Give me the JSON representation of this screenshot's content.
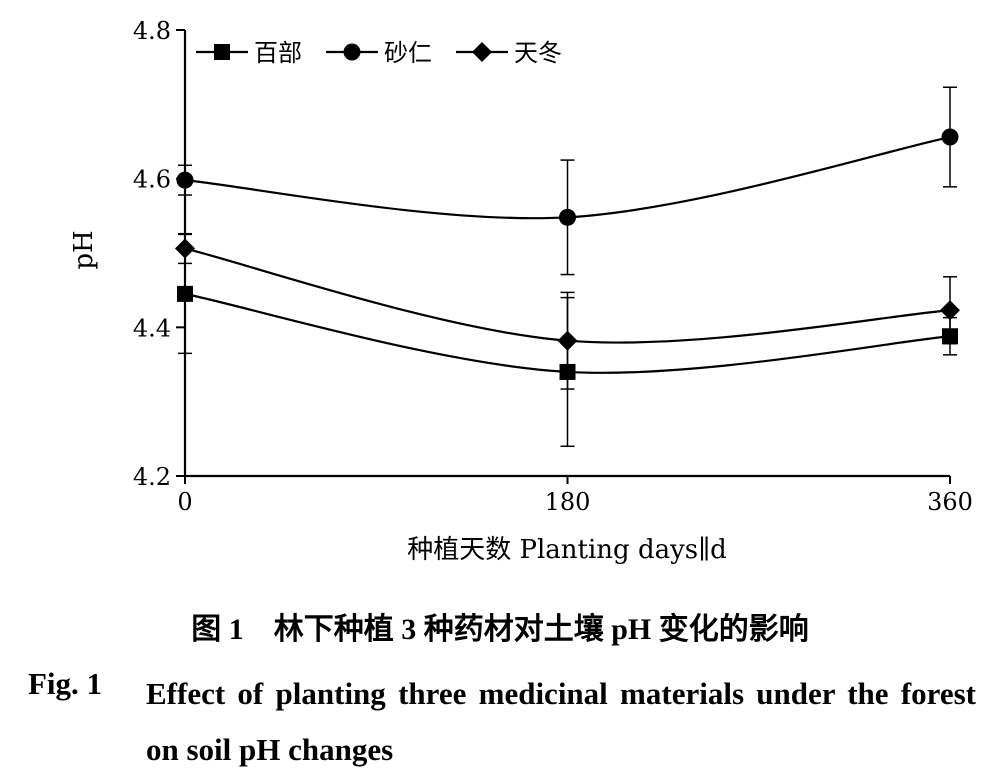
{
  "chart_data": {
    "type": "line",
    "x": [
      0,
      180,
      360
    ],
    "xticks": [
      "0",
      "180",
      "360"
    ],
    "yticks": [
      "4.2",
      "4.4",
      "4.6",
      "4.8"
    ],
    "xlim": [
      0,
      360
    ],
    "ylim": [
      4.2,
      4.8
    ],
    "xlabel": "种植天数 Planting days∥d",
    "ylabel": "pH",
    "legend_position": "top-left",
    "grid": false,
    "series": [
      {
        "name": "百部",
        "marker": "square",
        "y": [
          4.445,
          4.34,
          4.388
        ],
        "error": [
          0.08,
          0.1,
          0.025
        ]
      },
      {
        "name": "砂仁",
        "marker": "circle",
        "y": [
          4.598,
          4.548,
          4.656
        ],
        "error": [
          0.02,
          0.077,
          0.067
        ]
      },
      {
        "name": "天冬",
        "marker": "diamond",
        "y": [
          4.506,
          4.382,
          4.423
        ],
        "error": [
          0.02,
          0.065,
          0.045
        ]
      }
    ]
  },
  "caption": {
    "cn": "图 1　林下种植 3 种药材对土壤 pH 变化的影响",
    "en_label": "Fig. 1",
    "en_text": "Effect of planting three medicinal materials under the forest on soil pH changes"
  }
}
